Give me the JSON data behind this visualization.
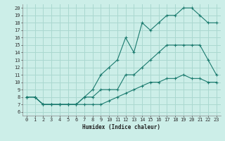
{
  "xlabel": "Humidex (Indice chaleur)",
  "bg_color": "#cceee8",
  "grid_color": "#aad8d0",
  "line_color": "#1a7a6e",
  "xlim": [
    -0.5,
    23.5
  ],
  "ylim": [
    5.5,
    20.5
  ],
  "xticks": [
    0,
    1,
    2,
    3,
    4,
    5,
    6,
    7,
    8,
    9,
    10,
    11,
    12,
    13,
    14,
    15,
    16,
    17,
    18,
    19,
    20,
    21,
    22,
    23
  ],
  "yticks": [
    6,
    7,
    8,
    9,
    10,
    11,
    12,
    13,
    14,
    15,
    16,
    17,
    18,
    19,
    20
  ],
  "series": [
    [
      8,
      8,
      7,
      7,
      7,
      7,
      7,
      8,
      9,
      11,
      12,
      13,
      16,
      14,
      18,
      17,
      18,
      19,
      19,
      20,
      20,
      19,
      18,
      18
    ],
    [
      8,
      8,
      7,
      7,
      7,
      7,
      7,
      8,
      8,
      9,
      9,
      9,
      11,
      11,
      12,
      13,
      14,
      15,
      15,
      15,
      15,
      15,
      13,
      11
    ],
    [
      8,
      8,
      7,
      7,
      7,
      7,
      7,
      7,
      7,
      7,
      7.5,
      8,
      8.5,
      9,
      9.5,
      10,
      10,
      10.5,
      10.5,
      11,
      10.5,
      10.5,
      10,
      10
    ]
  ]
}
